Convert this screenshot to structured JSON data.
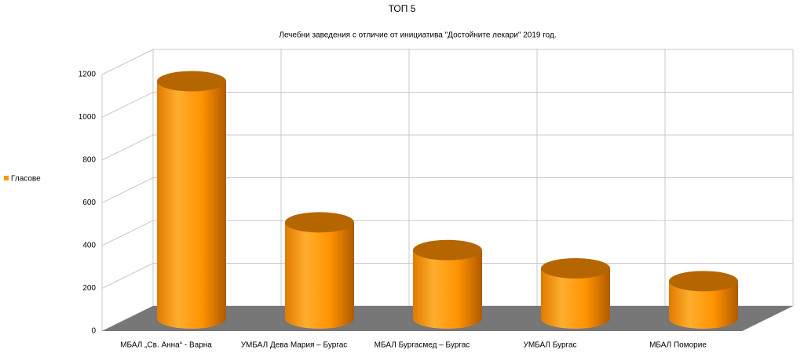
{
  "chart_data": {
    "type": "cylinder-bar",
    "title": "ТОП 5",
    "subtitle": "Лечебни заведения с отличие от инициатива  \"Достойните лекари\" 2019 год.",
    "categories": [
      "МБАЛ „Св. Анна“ - Варна",
      "УМБАЛ Дева Мария – Бургас",
      "МБАЛ Бургасмед – Бургас",
      "УМБАЛ Бургас",
      "МБАЛ Поморие"
    ],
    "series": [
      {
        "name": "Гласове",
        "color": "#ff9900",
        "values": [
          1110,
          450,
          320,
          235,
          175
        ]
      }
    ],
    "ylim": [
      0,
      1200
    ],
    "yticks": [
      0,
      200,
      400,
      600,
      800,
      1000,
      1200
    ],
    "grid": true,
    "legend": "left"
  }
}
